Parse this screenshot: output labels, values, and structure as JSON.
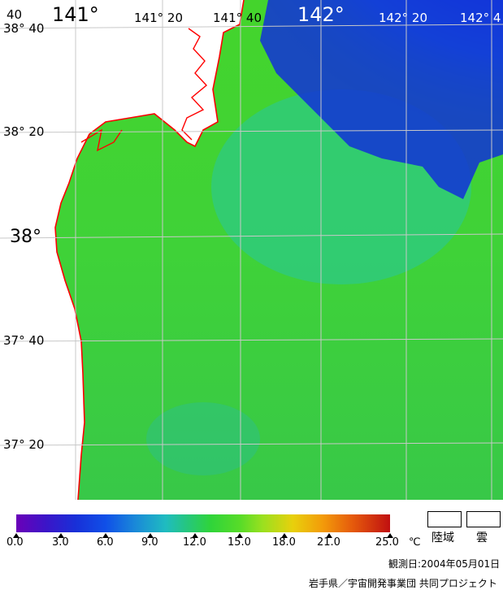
{
  "map": {
    "top_labels": [
      "40",
      "141°",
      "141° 20",
      "141° 40",
      "142°",
      "142° 20",
      "142° 4"
    ],
    "left_labels": [
      "38° 40",
      "38° 20",
      "38°",
      "37° 40",
      "37° 20"
    ],
    "colors": {
      "land": "#ffffff",
      "coastline": "#ff0000",
      "graticule": "#c8c8c8",
      "warm_water": "#3cd63c",
      "cold_water": "#1030d8"
    }
  },
  "legend": {
    "ticks": [
      "0.0",
      "3.0",
      "6.0",
      "9.0",
      "12.0",
      "15.0",
      "18.0",
      "21.0",
      "25.0"
    ],
    "unit": "℃",
    "land_label": "陸域",
    "cloud_label": "雲"
  },
  "footer": {
    "observation_date": "観測日:2004年05月01日",
    "credit": "岩手県／宇宙開発事業団  共同プロジェクト"
  }
}
